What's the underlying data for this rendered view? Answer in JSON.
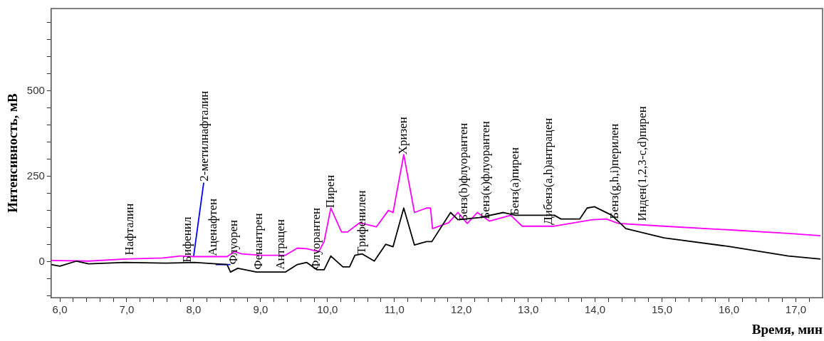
{
  "chart_data": {
    "type": "line",
    "xlabel": "Время, мин",
    "ylabel": "Интенсивность, мВ",
    "xlim": [
      5.87,
      17.4
    ],
    "ylim": [
      -105,
      740
    ],
    "xticks": [
      {
        "value": 6,
        "label": "6,0"
      },
      {
        "value": 6.2,
        "label": null
      },
      {
        "value": 6.4,
        "label": null
      },
      {
        "value": 6.6,
        "label": null
      },
      {
        "value": 6.8,
        "label": null
      },
      {
        "value": 7,
        "label": "7,0"
      },
      {
        "value": 7.2,
        "label": null
      },
      {
        "value": 7.4,
        "label": null
      },
      {
        "value": 7.6,
        "label": null
      },
      {
        "value": 7.8,
        "label": null
      },
      {
        "value": 8,
        "label": "8,0"
      },
      {
        "value": 8.2,
        "label": null
      },
      {
        "value": 8.4,
        "label": null
      },
      {
        "value": 8.6,
        "label": null
      },
      {
        "value": 8.8,
        "label": null
      },
      {
        "value": 9,
        "label": "9,0"
      },
      {
        "value": 9.2,
        "label": null
      },
      {
        "value": 9.4,
        "label": null
      },
      {
        "value": 9.6,
        "label": null
      },
      {
        "value": 9.8,
        "label": null
      },
      {
        "value": 10,
        "label": "10,0"
      },
      {
        "value": 10.2,
        "label": null
      },
      {
        "value": 10.4,
        "label": null
      },
      {
        "value": 10.6,
        "label": null
      },
      {
        "value": 10.8,
        "label": null
      },
      {
        "value": 11,
        "label": "11,0"
      },
      {
        "value": 11.2,
        "label": null
      },
      {
        "value": 11.4,
        "label": null
      },
      {
        "value": 11.6,
        "label": null
      },
      {
        "value": 11.8,
        "label": null
      },
      {
        "value": 12,
        "label": "12,0"
      },
      {
        "value": 12.2,
        "label": null
      },
      {
        "value": 12.4,
        "label": null
      },
      {
        "value": 12.6,
        "label": null
      },
      {
        "value": 12.8,
        "label": null
      },
      {
        "value": 13,
        "label": "13,0"
      },
      {
        "value": 13.2,
        "label": null
      },
      {
        "value": 13.4,
        "label": null
      },
      {
        "value": 13.6,
        "label": null
      },
      {
        "value": 13.8,
        "label": null
      },
      {
        "value": 14,
        "label": "14,0"
      },
      {
        "value": 14.2,
        "label": null
      },
      {
        "value": 14.4,
        "label": null
      },
      {
        "value": 14.6,
        "label": null
      },
      {
        "value": 14.8,
        "label": null
      },
      {
        "value": 15,
        "label": "15,0"
      },
      {
        "value": 15.2,
        "label": null
      },
      {
        "value": 15.4,
        "label": null
      },
      {
        "value": 15.6,
        "label": null
      },
      {
        "value": 15.8,
        "label": null
      },
      {
        "value": 16,
        "label": "16,0"
      },
      {
        "value": 16.2,
        "label": null
      },
      {
        "value": 16.4,
        "label": null
      },
      {
        "value": 16.6,
        "label": null
      },
      {
        "value": 16.8,
        "label": null
      },
      {
        "value": 17,
        "label": "17,0"
      },
      {
        "value": 17.2,
        "label": null
      }
    ],
    "yticks": [
      {
        "value": -100,
        "label": null
      },
      {
        "value": -50,
        "label": null
      },
      0,
      {
        "value": 50,
        "label": null
      },
      {
        "value": 100,
        "label": null
      },
      {
        "value": 150,
        "label": null
      },
      {
        "value": 200,
        "label": null
      },
      250,
      {
        "value": 300,
        "label": null
      },
      {
        "value": 350,
        "label": null
      },
      {
        "value": 400,
        "label": null
      },
      {
        "value": 450,
        "label": null
      },
      500,
      {
        "value": 550,
        "label": null
      },
      {
        "value": 600,
        "label": null
      },
      {
        "value": 650,
        "label": null
      },
      {
        "value": 700,
        "label": null
      }
    ],
    "grid": false,
    "legend": false,
    "marker": "none",
    "line_style": "solid",
    "series": [
      {
        "color": "#000000",
        "x": [
          5.87,
          6.0,
          6.25,
          6.43,
          6.97,
          7.58,
          8.01,
          8.5,
          8.55,
          8.66,
          8.94,
          9.37,
          9.55,
          9.69,
          9.84,
          9.95,
          10.05,
          10.23,
          10.33,
          10.41,
          10.52,
          10.7,
          10.87,
          10.98,
          11.14,
          11.3,
          11.48,
          11.56,
          11.84,
          11.95,
          12.27,
          12.63,
          12.81,
          13.39,
          13.49,
          13.77,
          13.88,
          13.99,
          14.25,
          14.46,
          15.03,
          16.03,
          16.89,
          17.37
        ],
        "values": [
          -8,
          -13,
          2,
          -6,
          -2,
          -4,
          -2,
          -8,
          -30,
          -19,
          -30,
          -30,
          -8,
          -2,
          -23,
          -23,
          17,
          -15,
          -15,
          19,
          23,
          2,
          51,
          44,
          157,
          49,
          59,
          59,
          144,
          123,
          129,
          144,
          136,
          136,
          125,
          125,
          157,
          161,
          136,
          97,
          70,
          44,
          17,
          8
        ]
      },
      {
        "color": "#ff00ff",
        "x": [
          5.87,
          6.43,
          6.97,
          7.54,
          7.8,
          8.01,
          8.5,
          8.61,
          8.72,
          9.01,
          9.37,
          9.55,
          9.69,
          9.87,
          9.95,
          10.05,
          10.21,
          10.3,
          10.48,
          10.73,
          10.91,
          10.98,
          11.14,
          11.3,
          11.48,
          11.54,
          11.57,
          11.81,
          11.95,
          12.09,
          12.24,
          12.42,
          12.74,
          12.91,
          13.39,
          13.96,
          14.17,
          14.35,
          15.03,
          16.03,
          16.89,
          17.37
        ],
        "values": [
          4,
          2,
          8,
          11,
          17,
          15,
          15,
          30,
          23,
          19,
          19,
          40,
          38,
          30,
          59,
          157,
          87,
          87,
          114,
          102,
          150,
          144,
          313,
          144,
          157,
          157,
          97,
          114,
          144,
          112,
          144,
          119,
          136,
          104,
          104,
          123,
          125,
          112,
          104,
          93,
          83,
          76
        ]
      },
      {
        "color": "#0000ff",
        "x": [
          8.0,
          8.15,
          8.16,
          8.33,
          8.55
        ],
        "values": [
          17,
          231,
          null,
          -8,
          -8
        ]
      }
    ],
    "annotations": [
      {
        "text": "Нафталин",
        "x": 7.05,
        "y": 19
      },
      {
        "text": "Бифенил",
        "x": 7.91,
        "y": -2
      },
      {
        "text": "2-метилнафталин",
        "x": 8.17,
        "y": 235
      },
      {
        "text": "Аценафтен",
        "x": 8.29,
        "y": 17
      },
      {
        "text": "Флуорен",
        "x": 8.6,
        "y": -8
      },
      {
        "text": "Фенантрен",
        "x": 8.98,
        "y": -23
      },
      {
        "text": "Антрацен",
        "x": 9.3,
        "y": -23
      },
      {
        "text": "Флуорантен",
        "x": 9.84,
        "y": -23
      },
      {
        "text": "Пирен",
        "x": 10.05,
        "y": 157
      },
      {
        "text": "Трифенилен",
        "x": 10.52,
        "y": 23
      },
      {
        "text": "Хризен",
        "x": 11.14,
        "y": 313
      },
      {
        "text": "Бенз(b)флуорантен",
        "x": 12.04,
        "y": 119
      },
      {
        "text": "Бенз(к)флуорантен",
        "x": 12.37,
        "y": 125
      },
      {
        "text": "Бенз(а)пирен",
        "x": 12.81,
        "y": 136
      },
      {
        "text": "Дибенз(a,h)антрацен",
        "x": 13.31,
        "y": 108
      },
      {
        "text": "Бенз(g,h,i)перилен",
        "x": 14.3,
        "y": 125
      },
      {
        "text": "Инден(1,2,3-c,d)пирен",
        "x": 14.71,
        "y": 119
      }
    ]
  }
}
